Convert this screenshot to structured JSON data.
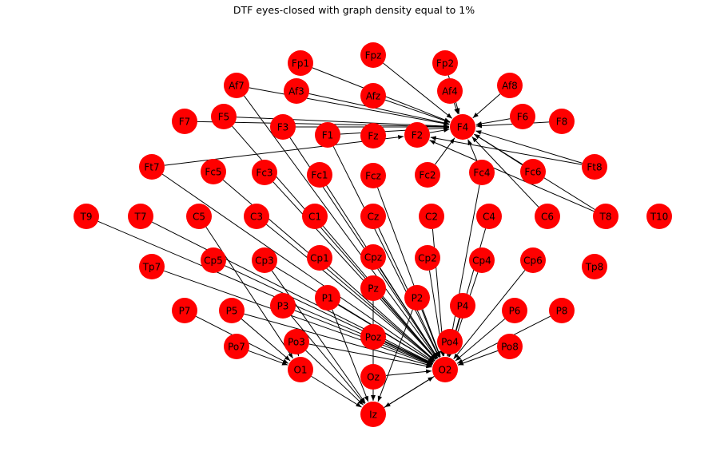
{
  "title": "DTF eyes-closed with graph density equal to 1%",
  "colors": {
    "node": "#ff0000",
    "edge": "#000000",
    "background": "#ffffff"
  },
  "nodes": [
    "Fp1",
    "Fpz",
    "Fp2",
    "Af7",
    "Af3",
    "Afz",
    "Af4",
    "Af8",
    "F7",
    "F5",
    "F3",
    "F1",
    "Fz",
    "F2",
    "F4",
    "F6",
    "F8",
    "Ft7",
    "Fc5",
    "Fc3",
    "Fc1",
    "Fcz",
    "Fc2",
    "Fc4",
    "Fc6",
    "Ft8",
    "T9",
    "T7",
    "C5",
    "C3",
    "C1",
    "Cz",
    "C2",
    "C4",
    "C6",
    "T8",
    "T10",
    "Tp7",
    "Cp5",
    "Cp3",
    "Cp1",
    "Cpz",
    "Cp2",
    "Cp4",
    "Cp6",
    "Tp8",
    "P7",
    "P5",
    "P3",
    "P1",
    "Pz",
    "P2",
    "P4",
    "P6",
    "P8",
    "Po7",
    "Po3",
    "Poz",
    "Po4",
    "Po8",
    "O1",
    "Oz",
    "O2",
    "Iz"
  ],
  "edges": [
    [
      "Fp1",
      "F4"
    ],
    [
      "Fpz",
      "F4"
    ],
    [
      "Fp2",
      "F4"
    ],
    [
      "Af7",
      "F4"
    ],
    [
      "Af3",
      "F4"
    ],
    [
      "Afz",
      "F4"
    ],
    [
      "Af4",
      "F4"
    ],
    [
      "Af8",
      "F4"
    ],
    [
      "F7",
      "F4"
    ],
    [
      "F5",
      "F4"
    ],
    [
      "F3",
      "F4"
    ],
    [
      "F1",
      "F4"
    ],
    [
      "F2",
      "F4"
    ],
    [
      "Fc2",
      "F4"
    ],
    [
      "F6",
      "F4"
    ],
    [
      "F8",
      "F4"
    ],
    [
      "Fc6",
      "F4"
    ],
    [
      "Ft8",
      "F4"
    ],
    [
      "T8",
      "F4"
    ],
    [
      "C6",
      "F4"
    ],
    [
      "Fc4",
      "F4"
    ],
    [
      "Ft7",
      "F2"
    ],
    [
      "Ft8",
      "F2"
    ],
    [
      "T8",
      "F2"
    ],
    [
      "Af7",
      "O2"
    ],
    [
      "F5",
      "O2"
    ],
    [
      "F3",
      "O2"
    ],
    [
      "F1",
      "O2"
    ],
    [
      "Fc1",
      "O2"
    ],
    [
      "Fcz",
      "O2"
    ],
    [
      "Fc3",
      "O2"
    ],
    [
      "Fc5",
      "O2"
    ],
    [
      "Ft7",
      "O2"
    ],
    [
      "C3",
      "O2"
    ],
    [
      "C1",
      "O2"
    ],
    [
      "Cz",
      "O2"
    ],
    [
      "C2",
      "O2"
    ],
    [
      "C4",
      "O2"
    ],
    [
      "Cp5",
      "O2"
    ],
    [
      "Cp3",
      "O2"
    ],
    [
      "Cp1",
      "O2"
    ],
    [
      "Cpz",
      "O2"
    ],
    [
      "Cp2",
      "O2"
    ],
    [
      "Cp4",
      "O2"
    ],
    [
      "T7",
      "O2"
    ],
    [
      "T9",
      "O2"
    ],
    [
      "Tp7",
      "O2"
    ],
    [
      "P5",
      "O2"
    ],
    [
      "P3",
      "O2"
    ],
    [
      "P1",
      "O2"
    ],
    [
      "Pz",
      "O2"
    ],
    [
      "P2",
      "O2"
    ],
    [
      "P4",
      "O2"
    ],
    [
      "P6",
      "O2"
    ],
    [
      "P8",
      "O2"
    ],
    [
      "Po3",
      "O2"
    ],
    [
      "Poz",
      "O2"
    ],
    [
      "Po4",
      "O2"
    ],
    [
      "Po8",
      "O2"
    ],
    [
      "Oz",
      "O2"
    ],
    [
      "Fc4",
      "O2"
    ],
    [
      "Iz",
      "O2"
    ],
    [
      "P7",
      "O1"
    ],
    [
      "P5",
      "O1"
    ],
    [
      "Po7",
      "O1"
    ],
    [
      "Po3",
      "O1"
    ],
    [
      "C5",
      "O1"
    ],
    [
      "O1",
      "Iz"
    ],
    [
      "Oz",
      "Iz"
    ],
    [
      "Poz",
      "Iz"
    ],
    [
      "P1",
      "Iz"
    ],
    [
      "P3",
      "Iz"
    ],
    [
      "Cp3",
      "Iz"
    ],
    [
      "Pz",
      "Iz"
    ],
    [
      "P2",
      "Iz"
    ],
    [
      "O2",
      "Iz"
    ],
    [
      "Po3",
      "Iz"
    ],
    [
      "Cp6",
      "O2"
    ]
  ]
}
